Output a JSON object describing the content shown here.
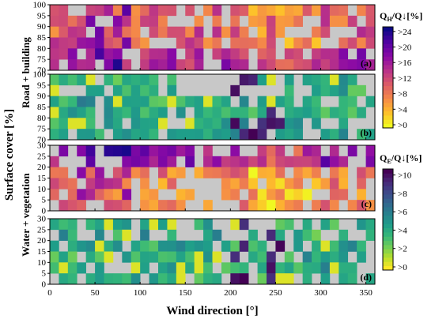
{
  "chart_data": {
    "type": "heatmap",
    "x_axis": {
      "label": "Wind direction [°]",
      "range": [
        0,
        360
      ],
      "ticks": [
        0,
        50,
        100,
        150,
        200,
        250,
        300,
        350
      ],
      "bin_width_deg": 10,
      "bins": 36
    },
    "y_axis_shared_label": "Surface cover [%]",
    "group_labels": [
      "Road + building",
      "Water + vegetation"
    ],
    "panels": [
      {
        "tag": "(a)",
        "group": "Road + building",
        "y_range": [
          70,
          100
        ],
        "y_ticks": [
          70,
          75,
          80,
          85,
          90,
          95,
          100
        ],
        "variable": "QH/Q↓",
        "colormap": "plasma_r",
        "vmin": 0,
        "vmax": 26
      },
      {
        "tag": "(b)",
        "group": "Road + building",
        "y_range": [
          70,
          100
        ],
        "y_ticks": [
          70,
          75,
          80,
          85,
          90,
          95,
          100
        ],
        "variable": "QE/Q↓",
        "colormap": "viridis_r",
        "vmin": 0,
        "vmax": 11
      },
      {
        "tag": "(c)",
        "group": "Water + vegetation",
        "y_range": [
          0,
          30
        ],
        "y_ticks": [
          0,
          5,
          10,
          15,
          20,
          25,
          30
        ],
        "variable": "QH/Q↓",
        "colormap": "plasma_r",
        "vmin": 0,
        "vmax": 26
      },
      {
        "tag": "(d)",
        "group": "Water + vegetation",
        "y_range": [
          0,
          30
        ],
        "y_ticks": [
          0,
          5,
          10,
          15,
          20,
          25,
          30
        ],
        "variable": "QE/Q↓",
        "colormap": "viridis_r",
        "vmin": 0,
        "vmax": 11
      }
    ],
    "colorbars": [
      {
        "title_main": "Q",
        "title_sub": "H",
        "title_rest": "/Q↓[%]",
        "colormap": "plasma_r",
        "labels": [
          ">0",
          ">4",
          ">8",
          ">12",
          ">16",
          ">20",
          ">24"
        ],
        "thresholds": [
          0,
          4,
          8,
          12,
          16,
          20,
          24
        ]
      },
      {
        "title_main": "Q",
        "title_sub": "E",
        "title_rest": "/Q↓[%]",
        "colormap": "viridis_r",
        "labels": [
          ">0",
          ">2",
          ">4",
          ">6",
          ">8",
          ">10"
        ],
        "thresholds": [
          0,
          2,
          4,
          6,
          8,
          10
        ]
      }
    ],
    "missing_color": "#c8c8c8",
    "seed": 7
  }
}
